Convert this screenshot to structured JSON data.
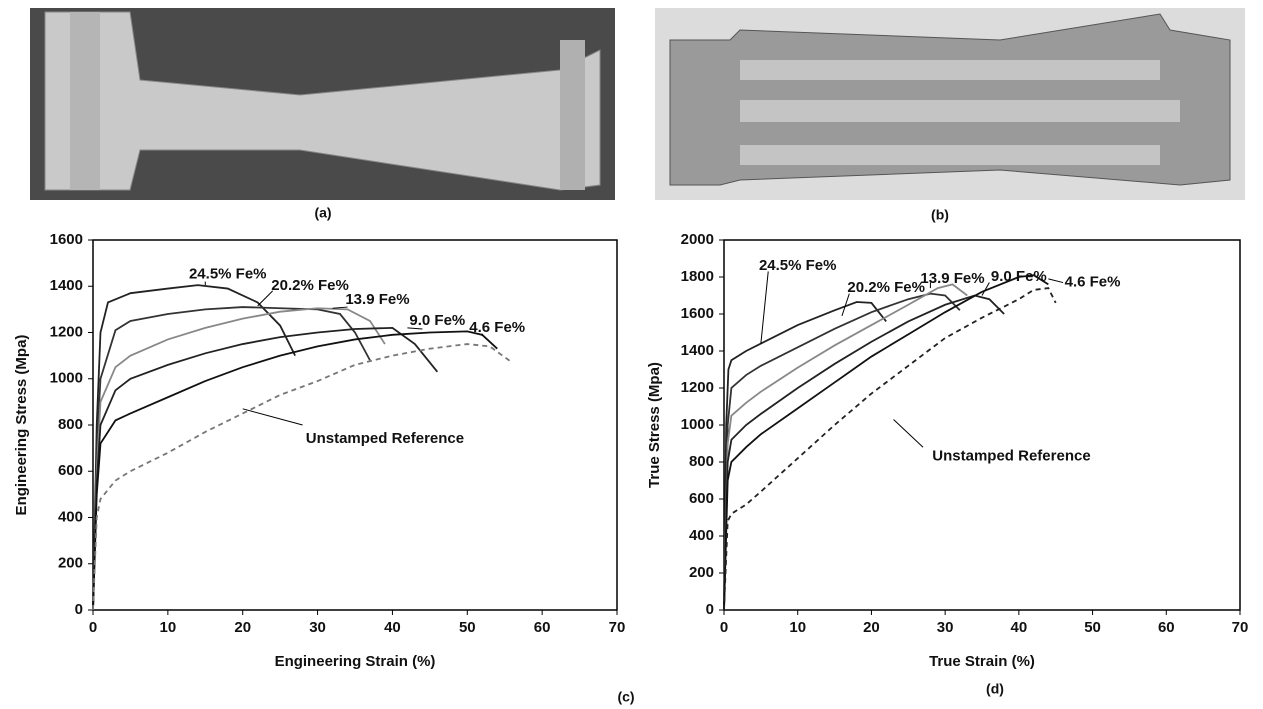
{
  "photos": [
    {
      "caption": "(a)"
    },
    {
      "caption": "(b)"
    }
  ],
  "chart_data": [
    {
      "type": "line",
      "caption": "(c)",
      "x_label": "Engineering Strain (%)",
      "y_label": "Engineering Stress (Mpa)",
      "xlim": [
        0,
        70
      ],
      "xticks": [
        0,
        10,
        20,
        30,
        40,
        50,
        60,
        70
      ],
      "ylim": [
        0,
        1600
      ],
      "yticks": [
        0,
        200,
        400,
        600,
        800,
        1000,
        1200,
        1400,
        1600
      ],
      "series": [
        {
          "name": "24.5% Fe%",
          "color": "#222222",
          "dashed": false,
          "x": [
            0,
            0.5,
            1,
            2,
            5,
            10,
            14,
            18,
            22,
            25,
            27
          ],
          "values": [
            0,
            800,
            1200,
            1330,
            1370,
            1390,
            1405,
            1390,
            1330,
            1230,
            1100
          ]
        },
        {
          "name": "20.2% Fe%",
          "color": "#333333",
          "dashed": false,
          "x": [
            0,
            0.5,
            1,
            3,
            5,
            10,
            15,
            20,
            25,
            30,
            33,
            35,
            37
          ],
          "values": [
            0,
            700,
            1000,
            1210,
            1250,
            1280,
            1300,
            1310,
            1305,
            1300,
            1280,
            1200,
            1080
          ]
        },
        {
          "name": "13.9 Fe%",
          "color": "#888888",
          "dashed": false,
          "x": [
            0,
            0.5,
            1,
            3,
            5,
            10,
            15,
            20,
            25,
            30,
            34,
            37,
            39
          ],
          "values": [
            0,
            600,
            900,
            1050,
            1100,
            1170,
            1220,
            1260,
            1290,
            1305,
            1300,
            1250,
            1150
          ]
        },
        {
          "name": "9.0 Fe%",
          "color": "#222222",
          "dashed": false,
          "x": [
            0,
            0.5,
            1,
            3,
            5,
            10,
            15,
            20,
            25,
            30,
            35,
            40,
            43,
            46
          ],
          "values": [
            0,
            550,
            800,
            950,
            1000,
            1060,
            1110,
            1150,
            1180,
            1200,
            1215,
            1220,
            1150,
            1030
          ]
        },
        {
          "name": "4.6 Fe%",
          "color": "#111111",
          "dashed": false,
          "x": [
            0,
            0.5,
            1,
            3,
            5,
            10,
            15,
            20,
            25,
            30,
            35,
            40,
            45,
            50,
            52,
            54
          ],
          "values": [
            0,
            500,
            720,
            820,
            850,
            920,
            990,
            1050,
            1100,
            1140,
            1170,
            1190,
            1200,
            1205,
            1190,
            1130
          ]
        },
        {
          "name": "Unstamped Reference",
          "color": "#777777",
          "dashed": true,
          "x": [
            0,
            0.5,
            1,
            3,
            5,
            10,
            15,
            20,
            25,
            30,
            35,
            40,
            45,
            50,
            53,
            56
          ],
          "values": [
            0,
            400,
            480,
            560,
            600,
            680,
            770,
            850,
            930,
            990,
            1060,
            1100,
            1130,
            1150,
            1140,
            1070
          ]
        }
      ]
    },
    {
      "type": "line",
      "caption": "(d)",
      "x_label": "True Strain (%)",
      "y_label": "True Stress (Mpa)",
      "xlim": [
        0,
        70
      ],
      "xticks": [
        0,
        10,
        20,
        30,
        40,
        50,
        60,
        70
      ],
      "ylim": [
        0,
        2000
      ],
      "yticks": [
        0,
        200,
        400,
        600,
        800,
        1000,
        1200,
        1400,
        1600,
        1800,
        2000
      ],
      "series": [
        {
          "name": "24.5% Fe%",
          "color": "#222222",
          "dashed": false,
          "x": [
            0,
            0.3,
            0.6,
            1,
            3,
            5,
            10,
            15,
            18,
            20,
            22
          ],
          "values": [
            0,
            1000,
            1300,
            1350,
            1400,
            1440,
            1540,
            1620,
            1665,
            1660,
            1560
          ]
        },
        {
          "name": "20.2% Fe%",
          "color": "#333333",
          "dashed": false,
          "x": [
            0,
            0.5,
            1,
            3,
            5,
            10,
            15,
            20,
            25,
            28,
            30,
            32
          ],
          "values": [
            0,
            1000,
            1200,
            1270,
            1320,
            1420,
            1520,
            1610,
            1680,
            1710,
            1700,
            1620
          ]
        },
        {
          "name": "13.9 Fe%",
          "color": "#888888",
          "dashed": false,
          "x": [
            0,
            0.5,
            1,
            3,
            5,
            10,
            15,
            20,
            25,
            29,
            31,
            33
          ],
          "values": [
            0,
            900,
            1050,
            1120,
            1180,
            1310,
            1430,
            1540,
            1650,
            1740,
            1760,
            1700
          ]
        },
        {
          "name": "9.0 Fe%",
          "color": "#222222",
          "dashed": false,
          "x": [
            0,
            0.5,
            1,
            3,
            5,
            10,
            15,
            20,
            25,
            30,
            34,
            36,
            38
          ],
          "values": [
            0,
            800,
            920,
            1000,
            1060,
            1200,
            1330,
            1450,
            1560,
            1650,
            1700,
            1680,
            1600
          ]
        },
        {
          "name": "4.6 Fe%",
          "color": "#111111",
          "dashed": false,
          "x": [
            0,
            0.5,
            1,
            3,
            5,
            10,
            15,
            20,
            25,
            30,
            35,
            40,
            42,
            44
          ],
          "values": [
            0,
            700,
            800,
            880,
            950,
            1090,
            1230,
            1370,
            1490,
            1610,
            1720,
            1800,
            1810,
            1760
          ]
        },
        {
          "name": "Unstamped Reference",
          "color": "#222222",
          "dashed": true,
          "x": [
            0,
            0.5,
            1,
            3,
            5,
            10,
            15,
            20,
            25,
            30,
            35,
            40,
            42,
            44,
            45
          ],
          "values": [
            0,
            480,
            520,
            570,
            640,
            820,
            1000,
            1170,
            1320,
            1470,
            1580,
            1680,
            1730,
            1740,
            1660
          ]
        }
      ]
    }
  ]
}
